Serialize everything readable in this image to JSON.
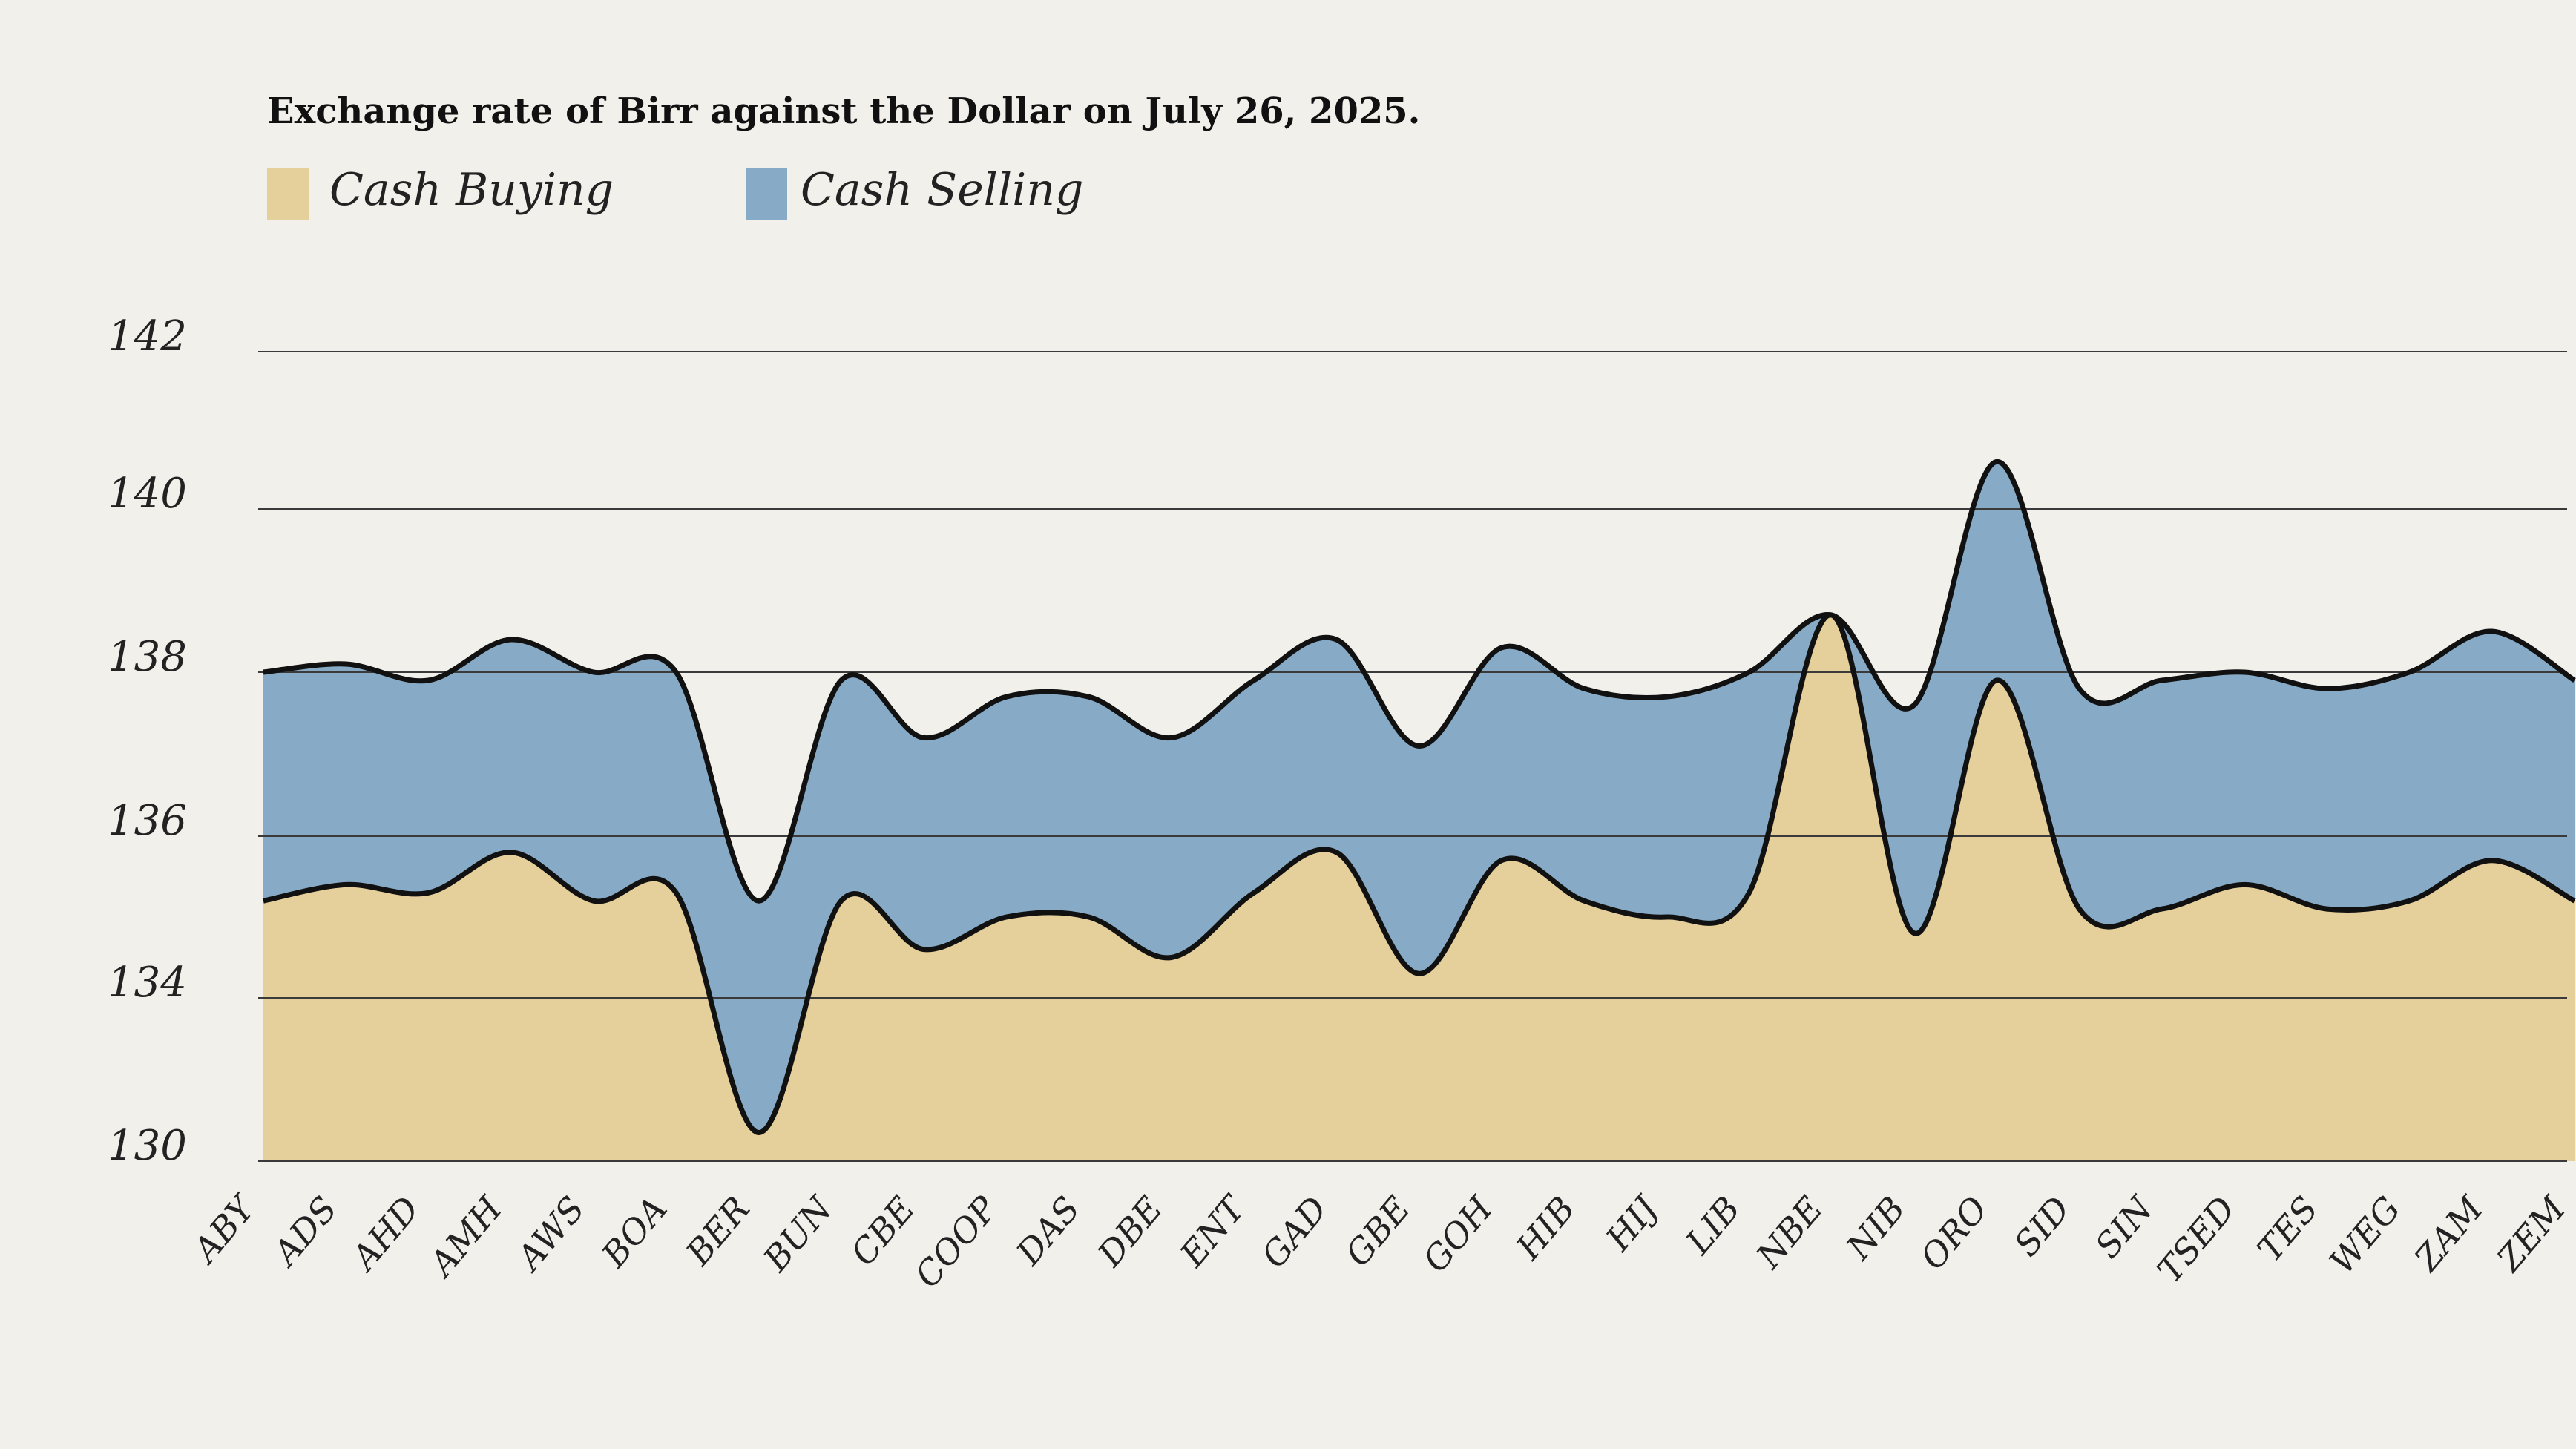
{
  "chart_data": {
    "type": "area",
    "title": "Exchange rate of Birr against the Dollar on July 26, 2025.",
    "xlabel": "",
    "ylabel": "",
    "categories": [
      "ABY",
      "ADS",
      "AHD",
      "AMH",
      "AWS",
      "BOA",
      "BER",
      "BUN",
      "CBE",
      "COOP",
      "DAS",
      "DBE",
      "ENT",
      "GAD",
      "GBE",
      "GOH",
      "HIB",
      "HIJ",
      "LIB",
      "NBE",
      "NIB",
      "ORO",
      "SID",
      "SIN",
      "TSED",
      "TES",
      "WEG",
      "ZAM",
      "ZEM"
    ],
    "series": [
      {
        "name": "Cash Buying",
        "color": "#e5cf9b",
        "values": [
          135.2,
          135.4,
          135.3,
          135.8,
          135.2,
          135.3,
          130.7,
          135.2,
          134.6,
          135.0,
          135.0,
          134.5,
          135.3,
          135.8,
          134.3,
          135.7,
          135.2,
          135.0,
          135.3,
          138.7,
          134.8,
          137.9,
          135.1,
          135.1,
          135.4,
          135.1,
          135.2,
          135.7,
          135.2
        ]
      },
      {
        "name": "Cash Selling",
        "color": "#87abc7",
        "values": [
          138.0,
          138.1,
          137.9,
          138.4,
          138.0,
          138.0,
          135.2,
          137.9,
          137.2,
          137.7,
          137.7,
          137.2,
          137.9,
          138.4,
          137.1,
          138.3,
          137.8,
          137.7,
          138.0,
          138.7,
          137.6,
          140.6,
          137.8,
          137.9,
          138.0,
          137.8,
          138.0,
          138.5,
          137.9
        ]
      }
    ],
    "yticks": [
      130,
      134,
      136,
      138,
      140,
      142
    ],
    "grid": true,
    "legend_position": "top-left"
  }
}
